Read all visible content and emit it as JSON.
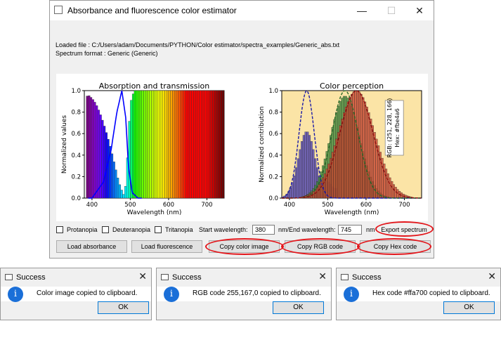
{
  "window": {
    "title": "Absorbance and fluorescence color estimator",
    "minimize": "—",
    "maximize": "☐",
    "close": "✕"
  },
  "info": {
    "loaded_file": "Loaded file : C:/Users/adam/Documents/PYTHON/Color estimator/spectra_examples/Generic_abs.txt",
    "spectrum_format": "Spectrum format : Generic (Generic)"
  },
  "chart_data": [
    {
      "type": "bar",
      "title": "Absorption and transmission",
      "xlabel": "Wavelength (nm)",
      "ylabel": "Normalized values",
      "xlim": [
        380,
        745
      ],
      "ylim": [
        0,
        1.0
      ],
      "xticks": [
        "400",
        "500",
        "600",
        "700"
      ],
      "yticks": [
        "0.0",
        "0.2",
        "0.4",
        "0.6",
        "0.8",
        "1.0"
      ],
      "transmission": [
        {
          "x": 380,
          "y": 0.92
        },
        {
          "x": 390,
          "y": 0.96
        },
        {
          "x": 400,
          "y": 0.93
        },
        {
          "x": 410,
          "y": 0.88
        },
        {
          "x": 420,
          "y": 0.8
        },
        {
          "x": 430,
          "y": 0.7
        },
        {
          "x": 440,
          "y": 0.58
        },
        {
          "x": 450,
          "y": 0.45
        },
        {
          "x": 460,
          "y": 0.3
        },
        {
          "x": 470,
          "y": 0.15
        },
        {
          "x": 480,
          "y": 0.05
        },
        {
          "x": 485,
          "y": 0.02
        },
        {
          "x": 490,
          "y": 0.2
        },
        {
          "x": 495,
          "y": 0.55
        },
        {
          "x": 500,
          "y": 0.88
        },
        {
          "x": 510,
          "y": 1.0
        },
        {
          "x": 745,
          "y": 1.0
        }
      ],
      "absorption": [
        {
          "x": 400,
          "y": 0.0
        },
        {
          "x": 430,
          "y": 0.15
        },
        {
          "x": 450,
          "y": 0.45
        },
        {
          "x": 465,
          "y": 0.8
        },
        {
          "x": 478,
          "y": 1.0
        },
        {
          "x": 488,
          "y": 0.75
        },
        {
          "x": 495,
          "y": 0.3
        },
        {
          "x": 505,
          "y": 0.05
        },
        {
          "x": 520,
          "y": 0.0
        }
      ]
    },
    {
      "type": "bar",
      "title": "Color perception",
      "xlabel": "Wavelength (nm)",
      "ylabel": "Normalized contribution",
      "xlim": [
        380,
        745
      ],
      "ylim": [
        0,
        1.0
      ],
      "xticks": [
        "400",
        "500",
        "600",
        "700"
      ],
      "yticks": [
        "0.0",
        "0.2",
        "0.4",
        "0.6",
        "0.8",
        "1.0"
      ],
      "background_color": "#fbe4a6",
      "annotation_rgb": "RGB: (251, 228, 166)",
      "annotation_hex": "Hex: #fbe4a6",
      "series": [
        {
          "color": "#4a3fb5",
          "curve": "#1a1aa8",
          "center": 445,
          "sigma": 22,
          "bar_peak": 0.62,
          "curve_peak": 1.0
        },
        {
          "color": "#3f8a3a",
          "curve": "#2a6a2a",
          "center": 545,
          "sigma": 38,
          "bar_peak": 0.95,
          "curve_peak": 1.0
        },
        {
          "color": "#c8432e",
          "curve": "#8a1010",
          "center": 575,
          "sigma": 48,
          "bar_peak": 1.0,
          "curve_peak": 1.0
        }
      ],
      "blue_secondary": [
        {
          "x": 495,
          "y": 0.12
        },
        {
          "x": 505,
          "y": 0.13
        },
        {
          "x": 515,
          "y": 0.09
        }
      ]
    }
  ],
  "controls": {
    "protanopia": "Protanopia",
    "deuteranopia": "Deuteranopia",
    "tritanopia": "Tritanopia",
    "start_label": "Start wavelength:",
    "start_value": "380",
    "end_label": "nm/End wavelength:",
    "end_value": "745",
    "nm_label": "nm",
    "export": "Export spectrum",
    "load_abs": "Load absorbance",
    "load_fluo": "Load fluorescence",
    "copy_image": "Copy color image",
    "copy_rgb": "Copy RGB code",
    "copy_hex": "Copy Hex code"
  },
  "highlight_color": "#e3151a",
  "dialogs": [
    {
      "title": "Success",
      "message": "Color image copied to clipboard.",
      "ok": "OK"
    },
    {
      "title": "Success",
      "message": "RGB code 255,167,0 copied to clipboard.",
      "ok": "OK"
    },
    {
      "title": "Success",
      "message": "Hex code #ffa700 copied to clipboard.",
      "ok": "OK"
    }
  ]
}
